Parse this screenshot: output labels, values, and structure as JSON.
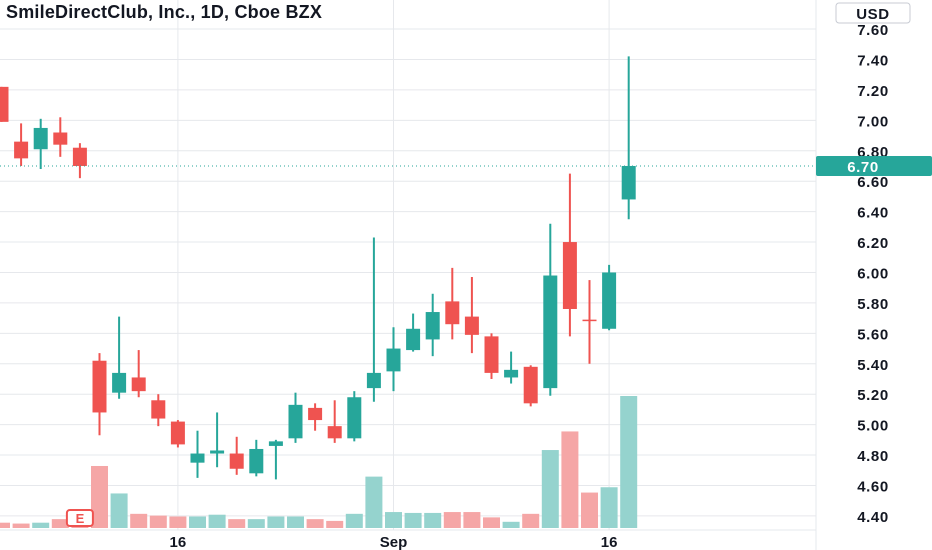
{
  "chart_data": {
    "type": "candlestick",
    "title": "SmileDirectClub, Inc., 1D, Cboe BZX",
    "currency": "USD",
    "last_price": "6.70",
    "ylim": [
      4.36,
      7.62
    ],
    "y_ticks": [
      "7.60",
      "7.40",
      "7.20",
      "7.00",
      "6.80",
      "6.60",
      "6.40",
      "6.20",
      "6.00",
      "5.80",
      "5.60",
      "5.40",
      "5.20",
      "5.00",
      "4.80",
      "4.60",
      "4.40"
    ],
    "x_ticks": [
      {
        "label": "16",
        "index": 9
      },
      {
        "label": "Sep",
        "index": 20
      },
      {
        "label": "16",
        "index": 31
      }
    ],
    "event_marker": {
      "label": "E",
      "index": 4
    },
    "colors": {
      "up": "#26a69a",
      "down": "#ef5350",
      "up_volume": "#95d3ce",
      "down_volume": "#f5a6a6",
      "grid": "#e6e8ec"
    },
    "candles": [
      {
        "o": 7.22,
        "h": 7.22,
        "l": 6.99,
        "c": 6.99
      },
      {
        "o": 6.86,
        "h": 6.98,
        "l": 6.7,
        "c": 6.75
      },
      {
        "o": 6.81,
        "h": 7.01,
        "l": 6.68,
        "c": 6.95
      },
      {
        "o": 6.92,
        "h": 7.02,
        "l": 6.76,
        "c": 6.84
      },
      {
        "o": 6.82,
        "h": 6.85,
        "l": 6.62,
        "c": 6.7
      },
      {
        "o": 5.42,
        "h": 5.47,
        "l": 4.93,
        "c": 5.08
      },
      {
        "o": 5.21,
        "h": 5.71,
        "l": 5.17,
        "c": 5.34
      },
      {
        "o": 5.31,
        "h": 5.49,
        "l": 5.18,
        "c": 5.22
      },
      {
        "o": 5.16,
        "h": 5.2,
        "l": 4.99,
        "c": 5.04
      },
      {
        "o": 5.02,
        "h": 5.03,
        "l": 4.85,
        "c": 4.87
      },
      {
        "o": 4.75,
        "h": 4.96,
        "l": 4.65,
        "c": 4.81
      },
      {
        "o": 4.81,
        "h": 5.08,
        "l": 4.72,
        "c": 4.83
      },
      {
        "o": 4.81,
        "h": 4.92,
        "l": 4.67,
        "c": 4.71
      },
      {
        "o": 4.68,
        "h": 4.9,
        "l": 4.66,
        "c": 4.84
      },
      {
        "o": 4.86,
        "h": 4.9,
        "l": 4.64,
        "c": 4.89
      },
      {
        "o": 4.91,
        "h": 5.21,
        "l": 4.88,
        "c": 5.13
      },
      {
        "o": 5.11,
        "h": 5.14,
        "l": 4.96,
        "c": 5.03
      },
      {
        "o": 4.99,
        "h": 5.16,
        "l": 4.88,
        "c": 4.91
      },
      {
        "o": 4.91,
        "h": 5.22,
        "l": 4.89,
        "c": 5.18
      },
      {
        "o": 5.24,
        "h": 6.23,
        "l": 5.15,
        "c": 5.34
      },
      {
        "o": 5.35,
        "h": 5.64,
        "l": 5.22,
        "c": 5.5
      },
      {
        "o": 5.49,
        "h": 5.73,
        "l": 5.48,
        "c": 5.63
      },
      {
        "o": 5.56,
        "h": 5.86,
        "l": 5.45,
        "c": 5.74
      },
      {
        "o": 5.81,
        "h": 6.03,
        "l": 5.56,
        "c": 5.66
      },
      {
        "o": 5.71,
        "h": 5.97,
        "l": 5.47,
        "c": 5.59
      },
      {
        "o": 5.58,
        "h": 5.6,
        "l": 5.3,
        "c": 5.34
      },
      {
        "o": 5.31,
        "h": 5.48,
        "l": 5.27,
        "c": 5.36
      },
      {
        "o": 5.38,
        "h": 5.39,
        "l": 5.12,
        "c": 5.14
      },
      {
        "o": 5.24,
        "h": 6.32,
        "l": 5.19,
        "c": 5.98
      },
      {
        "o": 6.2,
        "h": 6.65,
        "l": 5.58,
        "c": 5.76
      },
      {
        "o": 5.69,
        "h": 5.95,
        "l": 5.4,
        "c": 5.68
      },
      {
        "o": 5.63,
        "h": 6.05,
        "l": 5.62,
        "c": 6.0
      },
      {
        "o": 6.48,
        "h": 7.42,
        "l": 6.35,
        "c": 6.7
      }
    ],
    "volume": [
      0.6,
      0.5,
      0.6,
      1.0,
      1.1,
      7.0,
      3.9,
      1.6,
      1.4,
      1.3,
      1.3,
      1.5,
      1.0,
      1.0,
      1.3,
      1.3,
      1.0,
      0.8,
      1.6,
      5.8,
      1.8,
      1.7,
      1.7,
      1.8,
      1.8,
      1.2,
      0.7,
      1.6,
      8.8,
      10.9,
      4.0,
      4.6,
      14.9
    ]
  }
}
